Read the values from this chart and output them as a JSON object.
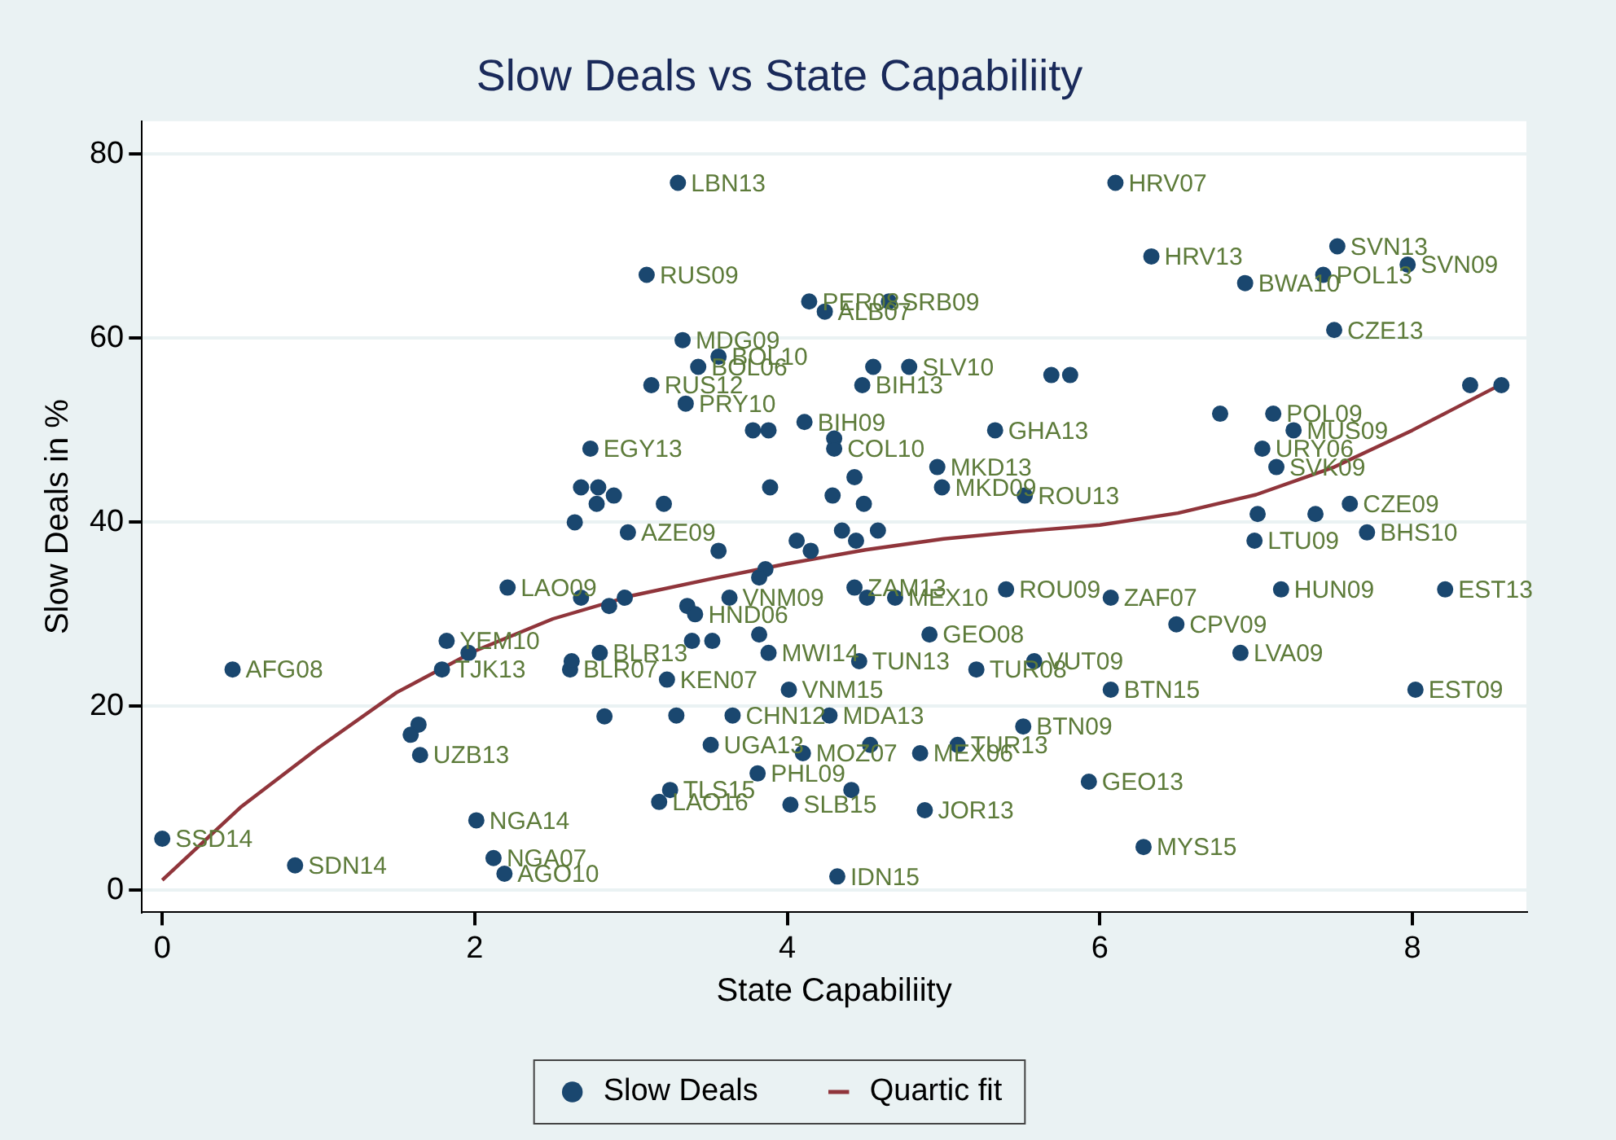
{
  "chart_data": {
    "type": "scatter",
    "title": "Slow Deals vs State Capabiliity",
    "xlabel": "State Capabiliity",
    "ylabel": "Slow Deals in %",
    "xlim": [
      -0.13,
      8.73
    ],
    "ylim": [
      -2.4,
      83.6
    ],
    "xticks": [
      0,
      2,
      4,
      6,
      8
    ],
    "yticks": [
      0,
      20,
      40,
      60,
      80
    ],
    "grid": "y",
    "legend": "bottom",
    "marker": "circle",
    "series": [
      {
        "name": "Slow Deals",
        "type": "scatter",
        "color": "#1a476f",
        "x": [
          0.0,
          0.85,
          0.45,
          2.01,
          2.12,
          2.19,
          1.65,
          1.64,
          1.59,
          1.79,
          1.96,
          1.82,
          2.21,
          2.68,
          2.86,
          2.96,
          2.8,
          2.61,
          2.62,
          2.83,
          3.3,
          3.1,
          4.14,
          4.24,
          4.65,
          3.33,
          3.56,
          3.43,
          3.13,
          3.35,
          4.55,
          4.78,
          4.48,
          5.69,
          5.81,
          5.33,
          4.11,
          3.78,
          3.88,
          4.3,
          4.3,
          4.96,
          4.99,
          5.52,
          3.89,
          4.43,
          4.29,
          4.49,
          2.74,
          2.98,
          2.68,
          2.79,
          2.89,
          2.78,
          2.64,
          3.21,
          6.1,
          6.33,
          6.93,
          7.52,
          7.43,
          7.97,
          7.5,
          8.37,
          8.57,
          6.77,
          7.11,
          7.24,
          7.04,
          7.13,
          7.6,
          7.38,
          7.01,
          7.71,
          6.99,
          7.16,
          8.21,
          6.07,
          6.49,
          6.9,
          6.07,
          8.02,
          5.93,
          6.28,
          5.4,
          4.91,
          5.58,
          5.21,
          4.46,
          4.01,
          3.23,
          5.51,
          3.51,
          4.1,
          4.53,
          5.09,
          4.85,
          3.81,
          3.25,
          3.18,
          4.02,
          4.41,
          4.88,
          4.32,
          4.35,
          4.58,
          4.44,
          4.06,
          4.15,
          3.56,
          3.86,
          3.82,
          4.43,
          4.51,
          4.69,
          3.63,
          3.36,
          3.41,
          3.82,
          3.39,
          3.52,
          3.88,
          3.29,
          3.65,
          4.27
        ],
        "values": [
          5.6,
          2.7,
          24,
          7.6,
          3.5,
          1.8,
          14.7,
          18.0,
          16.9,
          24,
          25.8,
          27.1,
          32.9,
          31.8,
          30.9,
          31.8,
          25.8,
          24.0,
          24.9,
          18.9,
          76.9,
          66.9,
          64.0,
          62.9,
          64.0,
          59.8,
          58.0,
          56.9,
          54.9,
          52.9,
          56.9,
          56.9,
          54.9,
          56.0,
          56.0,
          50.0,
          50.9,
          50.0,
          50.0,
          49.1,
          48.0,
          46.0,
          43.8,
          42.9,
          43.8,
          44.9,
          42.9,
          42.0,
          48.0,
          38.9,
          43.8,
          43.8,
          42.9,
          42.0,
          40.0,
          42.0,
          76.9,
          68.9,
          66.0,
          70.0,
          66.9,
          68.0,
          60.9,
          54.9,
          54.9,
          51.8,
          51.8,
          50.0,
          48.0,
          46.0,
          42.0,
          40.9,
          40.9,
          38.9,
          38.0,
          32.7,
          32.7,
          31.8,
          28.9,
          25.8,
          21.8,
          21.8,
          11.8,
          4.7,
          32.7,
          27.8,
          24.9,
          24.0,
          24.9,
          21.8,
          22.9,
          17.8,
          15.8,
          14.9,
          15.8,
          15.8,
          14.9,
          12.7,
          10.9,
          9.6,
          9.3,
          10.9,
          8.7,
          1.5,
          39.1,
          39.1,
          38.0,
          38.0,
          36.9,
          36.9,
          34.9,
          34.0,
          32.9,
          31.8,
          31.8,
          31.8,
          30.9,
          30.0,
          27.8,
          27.1,
          27.1,
          25.8,
          19.0,
          19.0,
          19.0
        ]
      },
      {
        "name": "Quartic fit",
        "type": "line",
        "color": "#90353b",
        "marker": "none",
        "x": [
          0,
          0.5,
          1,
          1.5,
          2,
          2.5,
          3,
          3.5,
          4,
          4.5,
          5,
          5.5,
          6,
          6.5,
          7,
          7.5,
          8,
          8.57
        ],
        "values": [
          1.1,
          9,
          15.5,
          21.5,
          26,
          29.5,
          32,
          33.8,
          35.5,
          37,
          38.2,
          39,
          39.7,
          41,
          43,
          46,
          50,
          55
        ]
      }
    ],
    "annotations": [
      {
        "text": "SSD14",
        "x": 0.0,
        "y": 5.6
      },
      {
        "text": "SDN14",
        "x": 0.85,
        "y": 2.7
      },
      {
        "text": "AFG08",
        "x": 0.45,
        "y": 24
      },
      {
        "text": "NGA14",
        "x": 2.01,
        "y": 7.6
      },
      {
        "text": "NGA07",
        "x": 2.12,
        "y": 3.5
      },
      {
        "text": "AGO10",
        "x": 2.19,
        "y": 1.8
      },
      {
        "text": "UZB13",
        "x": 1.65,
        "y": 14.7
      },
      {
        "text": "TJK13",
        "x": 1.79,
        "y": 24
      },
      {
        "text": "YEM10",
        "x": 1.82,
        "y": 27.1
      },
      {
        "text": "LAO09",
        "x": 2.21,
        "y": 32.9
      },
      {
        "text": "BLR13",
        "x": 2.8,
        "y": 25.8
      },
      {
        "text": "BLR07",
        "x": 2.61,
        "y": 24.0
      },
      {
        "text": "LBN13",
        "x": 3.3,
        "y": 76.9
      },
      {
        "text": "RUS09",
        "x": 3.1,
        "y": 66.9
      },
      {
        "text": "PER08",
        "x": 4.14,
        "y": 64.0
      },
      {
        "text": "ALB07",
        "x": 4.24,
        "y": 62.9
      },
      {
        "text": "SRB09",
        "x": 4.65,
        "y": 64.0
      },
      {
        "text": "MDG09",
        "x": 3.33,
        "y": 59.8
      },
      {
        "text": "BOL10",
        "x": 3.56,
        "y": 58.0
      },
      {
        "text": "BOL06",
        "x": 3.43,
        "y": 56.9
      },
      {
        "text": "RUS12",
        "x": 3.13,
        "y": 54.9
      },
      {
        "text": "PRY10",
        "x": 3.35,
        "y": 52.9
      },
      {
        "text": "SLV10",
        "x": 4.78,
        "y": 56.9
      },
      {
        "text": "BIH13",
        "x": 4.48,
        "y": 54.9
      },
      {
        "text": "GHA13",
        "x": 5.33,
        "y": 50.0
      },
      {
        "text": "BIH09",
        "x": 4.11,
        "y": 50.9
      },
      {
        "text": "COL10",
        "x": 4.3,
        "y": 48.0
      },
      {
        "text": "MKD13",
        "x": 4.96,
        "y": 46.0
      },
      {
        "text": "MKD09",
        "x": 4.99,
        "y": 43.8
      },
      {
        "text": "ROU13",
        "x": 5.52,
        "y": 42.9
      },
      {
        "text": "EGY13",
        "x": 2.74,
        "y": 48.0
      },
      {
        "text": "AZE09",
        "x": 2.98,
        "y": 38.9
      },
      {
        "text": "HRV07",
        "x": 6.1,
        "y": 76.9
      },
      {
        "text": "HRV13",
        "x": 6.33,
        "y": 68.9
      },
      {
        "text": "BWA10",
        "x": 6.93,
        "y": 66.0
      },
      {
        "text": "SVN13",
        "x": 7.52,
        "y": 70.0
      },
      {
        "text": "POL13",
        "x": 7.43,
        "y": 66.9
      },
      {
        "text": "SVN09",
        "x": 7.97,
        "y": 68.0
      },
      {
        "text": "CZE13",
        "x": 7.5,
        "y": 60.9
      },
      {
        "text": "POL09",
        "x": 7.11,
        "y": 51.8
      },
      {
        "text": "MUS09",
        "x": 7.24,
        "y": 50.0
      },
      {
        "text": "URY06",
        "x": 7.04,
        "y": 48.0
      },
      {
        "text": "SVK09",
        "x": 7.13,
        "y": 46.0
      },
      {
        "text": "CZE09",
        "x": 7.6,
        "y": 42.0
      },
      {
        "text": "BHS10",
        "x": 7.71,
        "y": 38.9
      },
      {
        "text": "LTU09",
        "x": 6.99,
        "y": 38.0
      },
      {
        "text": "HUN09",
        "x": 7.16,
        "y": 32.7
      },
      {
        "text": "EST13",
        "x": 8.21,
        "y": 32.7
      },
      {
        "text": "ZAF07",
        "x": 6.07,
        "y": 31.8
      },
      {
        "text": "CPV09",
        "x": 6.49,
        "y": 28.9
      },
      {
        "text": "LVA09",
        "x": 6.9,
        "y": 25.8
      },
      {
        "text": "BTN15",
        "x": 6.07,
        "y": 21.8
      },
      {
        "text": "EST09",
        "x": 8.02,
        "y": 21.8
      },
      {
        "text": "GEO13",
        "x": 5.93,
        "y": 11.8
      },
      {
        "text": "MYS15",
        "x": 6.28,
        "y": 4.7
      },
      {
        "text": "ROU09",
        "x": 5.4,
        "y": 32.7
      },
      {
        "text": "GEO08",
        "x": 4.91,
        "y": 27.8
      },
      {
        "text": "VUT09",
        "x": 5.58,
        "y": 24.9
      },
      {
        "text": "TUR08",
        "x": 5.21,
        "y": 24.0
      },
      {
        "text": "TUN13",
        "x": 4.46,
        "y": 24.9
      },
      {
        "text": "VNM15",
        "x": 4.01,
        "y": 21.8
      },
      {
        "text": "KEN07",
        "x": 3.23,
        "y": 22.9
      },
      {
        "text": "BTN09",
        "x": 5.51,
        "y": 17.8
      },
      {
        "text": "UGA13",
        "x": 3.51,
        "y": 15.8
      },
      {
        "text": "MOZ07",
        "x": 4.1,
        "y": 14.9
      },
      {
        "text": "TUR13",
        "x": 5.09,
        "y": 15.8
      },
      {
        "text": "MEX06",
        "x": 4.85,
        "y": 14.9
      },
      {
        "text": "PHL09",
        "x": 3.81,
        "y": 12.7
      },
      {
        "text": "TLS15",
        "x": 3.25,
        "y": 10.9
      },
      {
        "text": "LAO16",
        "x": 3.18,
        "y": 9.6
      },
      {
        "text": "SLB15",
        "x": 4.02,
        "y": 9.3
      },
      {
        "text": "JOR13",
        "x": 4.88,
        "y": 8.7
      },
      {
        "text": "IDN15",
        "x": 4.32,
        "y": 1.5
      },
      {
        "text": "ZAM13",
        "x": 4.43,
        "y": 32.9
      },
      {
        "text": "MEX10",
        "x": 4.69,
        "y": 31.8
      },
      {
        "text": "VNM09",
        "x": 3.63,
        "y": 31.8
      },
      {
        "text": "HND06",
        "x": 3.41,
        "y": 30.0
      },
      {
        "text": "MWI14",
        "x": 3.88,
        "y": 25.8
      },
      {
        "text": "CHN12",
        "x": 3.65,
        "y": 19.0
      },
      {
        "text": "MDA13",
        "x": 4.27,
        "y": 19.0
      }
    ]
  }
}
